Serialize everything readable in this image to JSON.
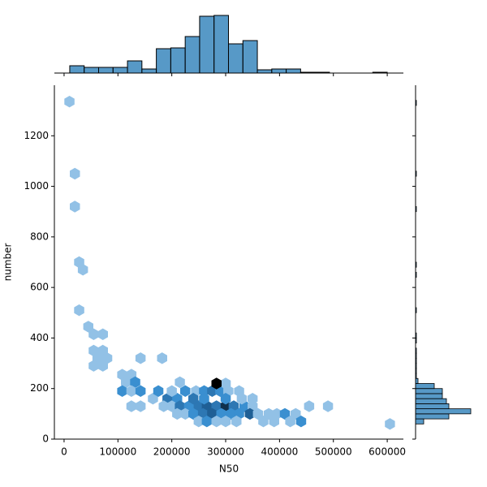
{
  "chart_data": {
    "type": "hexbin",
    "xlabel": "N50",
    "ylabel": "number",
    "color": "#1f77b4",
    "xlim": [
      -18000,
      630000
    ],
    "ylim": [
      0,
      1400
    ],
    "xticks": [
      0,
      100000,
      200000,
      300000,
      400000,
      500000,
      600000
    ],
    "yticks": [
      0,
      200,
      400,
      600,
      800,
      1000,
      1200
    ],
    "x": [
      10000,
      20000,
      20000,
      28000,
      35000,
      28000,
      45000,
      55000,
      72000,
      55000,
      72000,
      62000,
      80000,
      55000,
      72000,
      108000,
      125000,
      115000,
      132000,
      108000,
      125000,
      142000,
      142000,
      182000,
      125000,
      142000,
      165000,
      175000,
      192000,
      210000,
      200000,
      225000,
      215000,
      245000,
      260000,
      275000,
      290000,
      305000,
      300000,
      283000,
      325000,
      185000,
      200000,
      215000,
      232000,
      250000,
      265000,
      283000,
      300000,
      315000,
      335000,
      350000,
      210000,
      225000,
      240000,
      258000,
      275000,
      292000,
      310000,
      325000,
      345000,
      360000,
      380000,
      395000,
      410000,
      430000,
      250000,
      265000,
      283000,
      300000,
      320000,
      370000,
      390000,
      420000,
      440000,
      455000,
      490000,
      605000,
      300000,
      240000,
      260000,
      330000,
      350000
    ],
    "y": [
      1335,
      1050,
      920,
      700,
      670,
      510,
      445,
      415,
      415,
      350,
      350,
      320,
      320,
      290,
      290,
      255,
      255,
      225,
      225,
      190,
      190,
      190,
      320,
      320,
      130,
      130,
      160,
      190,
      160,
      160,
      190,
      190,
      225,
      190,
      190,
      190,
      190,
      190,
      220,
      220,
      190,
      130,
      130,
      130,
      130,
      130,
      130,
      130,
      130,
      130,
      130,
      130,
      100,
      100,
      100,
      100,
      100,
      100,
      100,
      100,
      100,
      100,
      100,
      100,
      100,
      100,
      70,
      70,
      70,
      70,
      70,
      70,
      70,
      70,
      70,
      130,
      130,
      60,
      160,
      160,
      160,
      160,
      160
    ],
    "counts": [
      1,
      1,
      1,
      1,
      1,
      1,
      1,
      1,
      1,
      1,
      1,
      1,
      1,
      1,
      1,
      1,
      1,
      1,
      2,
      2,
      1,
      2,
      1,
      1,
      1,
      1,
      1,
      2,
      3,
      2,
      1,
      2,
      1,
      1,
      2,
      3,
      2,
      1,
      1,
      6,
      1,
      1,
      1,
      3,
      2,
      3,
      4,
      3,
      5,
      3,
      2,
      1,
      1,
      1,
      2,
      3,
      4,
      2,
      2,
      2,
      4,
      1,
      1,
      1,
      2,
      1,
      1,
      2,
      1,
      1,
      1,
      1,
      1,
      1,
      2,
      1,
      1,
      1,
      2,
      3,
      2,
      1,
      1
    ],
    "marginal_x": {
      "bins": [
        10550,
        37340,
        64130,
        90920,
        117710,
        144500,
        171290,
        198080,
        224870,
        251660,
        278450,
        305240,
        332030,
        358820,
        385610,
        412400,
        439190,
        465980,
        492770,
        519560,
        546350,
        573140,
        599930
      ],
      "counts": [
        9,
        7,
        7,
        7,
        15,
        5,
        30,
        31,
        45,
        70,
        71,
        36,
        40,
        4,
        5,
        5,
        1,
        1,
        0,
        0,
        0,
        1
      ]
    },
    "marginal_y": {
      "bins": [
        60,
        80,
        100,
        120,
        140,
        160,
        180,
        200,
        220,
        240,
        260,
        280,
        300,
        320,
        340,
        360,
        380,
        400,
        420,
        440,
        460,
        480,
        500,
        520,
        540,
        560,
        580,
        600,
        620,
        640,
        660,
        680,
        700,
        720,
        740,
        760,
        780,
        800,
        820,
        840,
        860,
        880,
        900,
        920,
        940,
        960,
        980,
        1000,
        1020,
        1040,
        1060,
        1080,
        1100,
        1120,
        1140,
        1160,
        1180,
        1200,
        1220,
        1240,
        1260,
        1280,
        1300,
        1320,
        1340
      ],
      "counts": [
        10,
        41,
        68,
        41,
        38,
        33,
        33,
        23,
        3,
        1,
        1,
        1,
        1,
        1,
        1,
        0,
        1,
        1,
        0,
        0,
        0,
        0,
        1,
        0,
        0,
        0,
        0,
        0,
        0,
        1,
        0,
        1,
        0,
        0,
        0,
        0,
        0,
        0,
        0,
        0,
        0,
        0,
        1,
        0,
        0,
        0,
        0,
        0,
        0,
        1,
        0,
        0,
        0,
        0,
        0,
        0,
        0,
        0,
        0,
        0,
        0,
        0,
        0,
        1
      ]
    }
  }
}
